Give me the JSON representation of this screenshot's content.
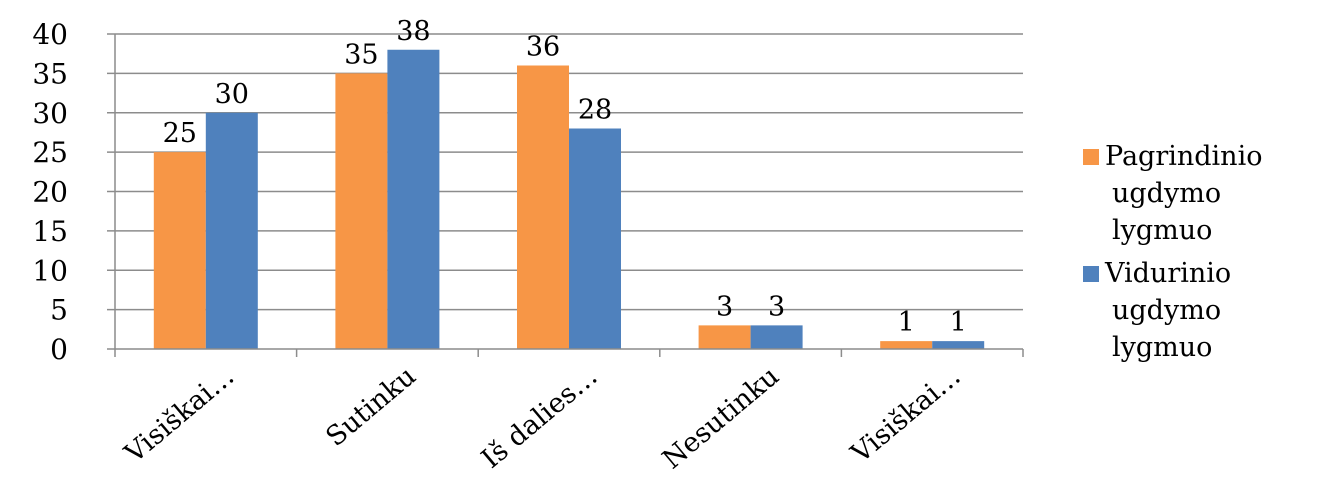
{
  "chart_data": {
    "type": "bar",
    "categories": [
      "Visiškai…",
      "Sutinku",
      "Iš dalies…",
      "Nesutinku",
      "Visiškai…"
    ],
    "series": [
      {
        "name": "Pagrindinio ugdymo lygmuo",
        "legend_lines": [
          "Pagrindinio",
          "ugdymo",
          "lygmuo"
        ],
        "color": "#F79646",
        "values": [
          25,
          35,
          36,
          3,
          1
        ]
      },
      {
        "name": "Vidurinio ugdymo lygmuo",
        "legend_lines": [
          "Vidurinio",
          "ugdymo",
          "lygmuo"
        ],
        "color": "#4F81BD",
        "values": [
          30,
          38,
          28,
          3,
          1
        ]
      }
    ],
    "ylim": [
      0,
      40
    ],
    "yticks": [
      0,
      5,
      10,
      15,
      20,
      25,
      30,
      35,
      40
    ],
    "grid": true,
    "legend": "right",
    "data_labels": true
  }
}
